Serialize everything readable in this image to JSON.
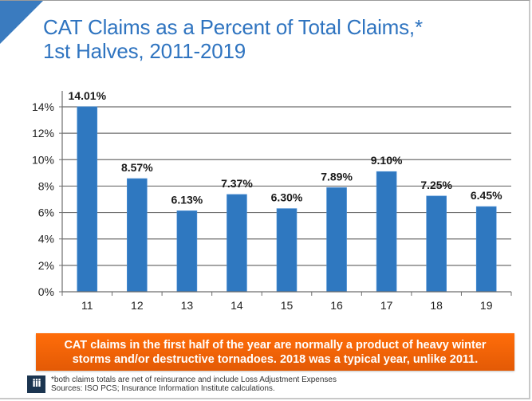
{
  "title": {
    "line1": "CAT Claims as a Percent of Total Claims,*",
    "line2": "1st Halves, 2011-2019"
  },
  "chart_data": {
    "type": "bar",
    "title": "CAT Claims as a Percent of Total Claims,* 1st Halves, 2011-2019",
    "xlabel": "",
    "ylabel": "",
    "categories": [
      "11",
      "12",
      "13",
      "14",
      "15",
      "16",
      "17",
      "18",
      "19"
    ],
    "values": [
      14.01,
      8.57,
      6.13,
      7.37,
      6.3,
      7.89,
      9.1,
      7.25,
      6.45
    ],
    "data_labels": [
      "14.01%",
      "8.57%",
      "6.13%",
      "7.37%",
      "6.30%",
      "7.89%",
      "9.10%",
      "7.25%",
      "6.45%"
    ],
    "ylim": [
      0,
      14
    ],
    "yticks": [
      0,
      2,
      4,
      6,
      8,
      10,
      12,
      14
    ],
    "ytick_labels": [
      "0%",
      "2%",
      "4%",
      "6%",
      "8%",
      "10%",
      "12%",
      "14%"
    ],
    "grid": true,
    "legend": "none",
    "bar_color": "#2f78c0"
  },
  "banner": {
    "line1": "CAT claims in the first half of the year are normally a product of heavy winter",
    "line2": "storms and/or destructive tornadoes. 2018 was a typical year, unlike 2011.",
    "color": "#f26508"
  },
  "footer": {
    "logo_text": "iii",
    "note": "*both claims totals are net of reinsurance and include Loss Adjustment Expenses",
    "sources": "Sources: ISO PCS; Insurance Information Institute calculations."
  },
  "accent_color": "#3a7bbf"
}
